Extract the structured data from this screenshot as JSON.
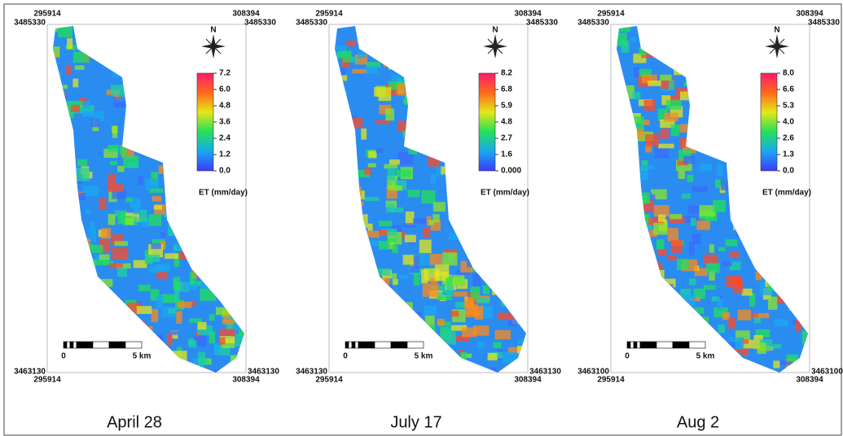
{
  "panels": [
    {
      "caption": "April 28",
      "coords": {
        "top_left_x": 295914,
        "top_left_y": 3485330,
        "top_right_x": 308394,
        "top_right_y": 3485330,
        "bottom_left_y": 3463130,
        "bottom_left_x": 295914,
        "bottom_right_y": 3463130,
        "bottom_right_x": 308394
      },
      "north": "N",
      "legend": {
        "title": "ET (mm/day)",
        "ticks": [
          7.2,
          {
            "value": 6,
            "label": "6.0"
          },
          4.8,
          3.6,
          2.4,
          1.2,
          {
            "value": 0,
            "label": "0.0"
          }
        ]
      },
      "scale": {
        "start": 0,
        "end": "5 km"
      }
    },
    {
      "caption": "July 17",
      "coords": {
        "top_left_x": 295914,
        "top_left_y": 3485330,
        "top_right_x": 308394,
        "top_right_y": 3485330,
        "bottom_left_y": 3463130,
        "bottom_left_x": 295914,
        "bottom_right_y": 3463130,
        "bottom_right_x": 308394
      },
      "north": "N",
      "legend": {
        "title": "ET (mm/day)",
        "ticks": [
          8.2,
          6.8,
          5.9,
          4.8,
          2.7,
          1.6,
          {
            "value": 0,
            "label": "0.000"
          }
        ]
      },
      "scale": {
        "start": 0,
        "end": "5 km"
      }
    },
    {
      "caption": "Aug 2",
      "coords": {
        "top_left_x": 295914,
        "top_left_y": 3485330,
        "top_right_x": 308394,
        "top_right_y": 3485330,
        "bottom_left_y": 3463100,
        "bottom_left_x": 295914,
        "bottom_right_y": 3463100,
        "bottom_right_x": 308394
      },
      "north": "N",
      "legend": {
        "title": "ET (mm/day)",
        "ticks": [
          {
            "value": 8,
            "label": "8.0"
          },
          6.6,
          5.3,
          {
            "value": 4,
            "label": "4.0"
          },
          2.6,
          1.3,
          {
            "value": 0,
            "label": "0.0"
          }
        ]
      },
      "scale": {
        "start": 0,
        "end": "5 km"
      }
    }
  ]
}
